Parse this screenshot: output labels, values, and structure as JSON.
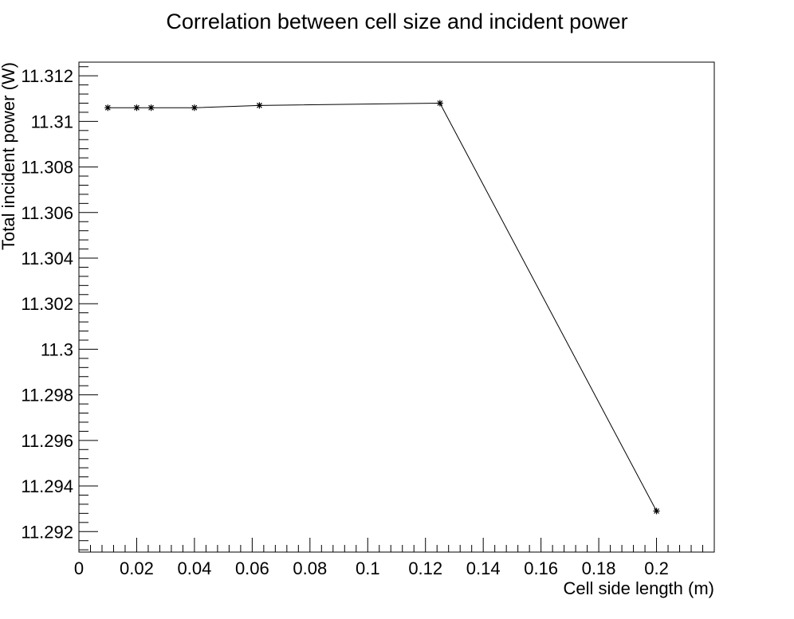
{
  "chart_data": {
    "type": "line",
    "title": "Correlation between cell size and incident power",
    "xlabel": "Cell side length (m)",
    "ylabel": "Total incident power (W)",
    "xlim": [
      0,
      0.22
    ],
    "ylim": [
      11.2911,
      11.3126
    ],
    "x_ticks": [
      {
        "value": 0,
        "label": "0"
      },
      {
        "value": 0.02,
        "label": "0.02"
      },
      {
        "value": 0.04,
        "label": "0.04"
      },
      {
        "value": 0.06,
        "label": "0.06"
      },
      {
        "value": 0.08,
        "label": "0.08"
      },
      {
        "value": 0.1,
        "label": "0.1"
      },
      {
        "value": 0.12,
        "label": "0.12"
      },
      {
        "value": 0.14,
        "label": "0.14"
      },
      {
        "value": 0.16,
        "label": "0.16"
      },
      {
        "value": 0.18,
        "label": "0.18"
      },
      {
        "value": 0.2,
        "label": "0.2"
      }
    ],
    "y_ticks": [
      {
        "value": 11.292,
        "label": "11.292"
      },
      {
        "value": 11.294,
        "label": "11.294"
      },
      {
        "value": 11.296,
        "label": "11.296"
      },
      {
        "value": 11.298,
        "label": "11.298"
      },
      {
        "value": 11.3,
        "label": "11.3"
      },
      {
        "value": 11.302,
        "label": "11.302"
      },
      {
        "value": 11.304,
        "label": "11.304"
      },
      {
        "value": 11.306,
        "label": "11.306"
      },
      {
        "value": 11.308,
        "label": "11.308"
      },
      {
        "value": 11.31,
        "label": "11.31"
      },
      {
        "value": 11.312,
        "label": "11.312"
      }
    ],
    "x_minor_step": 0.004,
    "y_minor_step": 0.0004,
    "grid": false,
    "marker": "star",
    "line_color": "#000000",
    "series": [
      {
        "x": [
          0.01,
          0.02,
          0.025,
          0.04,
          0.0625,
          0.125,
          0.2
        ],
        "y": [
          11.3106,
          11.3106,
          11.3106,
          11.3106,
          11.3107,
          11.3108,
          11.2929
        ]
      }
    ]
  }
}
